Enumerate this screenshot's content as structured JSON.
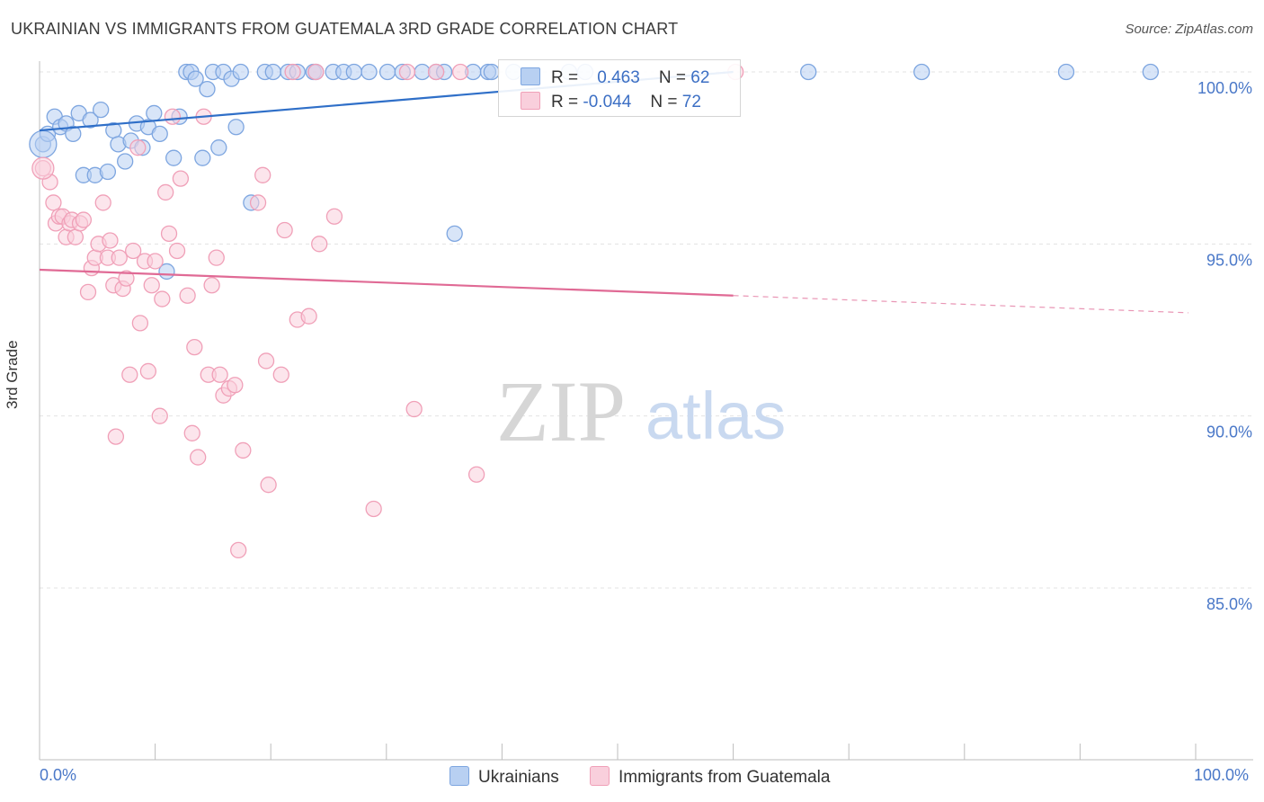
{
  "chart_data": {
    "type": "scatter",
    "title": "UKRAINIAN VS IMMIGRANTS FROM GUATEMALA 3RD GRADE CORRELATION CHART",
    "source": "Source: ZipAtlas.com",
    "xlabel": "",
    "ylabel": "3rd Grade",
    "xlim": [
      0,
      100
    ],
    "ylim": [
      80,
      100
    ],
    "x_tick_labels": [
      "0.0%",
      "100.0%"
    ],
    "y_ticks": [
      {
        "value": 100,
        "label": "100.0%"
      },
      {
        "value": 95,
        "label": "95.0%"
      },
      {
        "value": 90,
        "label": "90.0%"
      },
      {
        "value": 85,
        "label": "85.0%"
      }
    ],
    "watermark": {
      "left": "ZIP",
      "right": "atlas"
    },
    "legend_stats": [
      {
        "r_label": "R =",
        "r_value": "0.463",
        "n_label": "N =",
        "n_value": "62"
      },
      {
        "r_label": "R =",
        "r_value": "-0.044",
        "n_label": "N =",
        "n_value": "72"
      }
    ],
    "series": [
      {
        "name": "Ukrainians",
        "color": "#7ea6e0",
        "fill": "#b8d0f2",
        "line_color": "#2f6fc8",
        "trend": {
          "x0": 0,
          "y0": 98.3,
          "x1": 60,
          "y1": 100.0,
          "dashed_to": 60
        },
        "points": [
          [
            0.3,
            97.9
          ],
          [
            0.7,
            98.2
          ],
          [
            1.3,
            98.7
          ],
          [
            1.8,
            98.4
          ],
          [
            2.3,
            98.5
          ],
          [
            2.9,
            98.2
          ],
          [
            3.4,
            98.8
          ],
          [
            3.8,
            97.0
          ],
          [
            4.4,
            98.6
          ],
          [
            4.8,
            97.0
          ],
          [
            5.3,
            98.9
          ],
          [
            5.9,
            97.1
          ],
          [
            6.4,
            98.3
          ],
          [
            6.8,
            97.9
          ],
          [
            7.4,
            97.4
          ],
          [
            7.9,
            98.0
          ],
          [
            8.4,
            98.5
          ],
          [
            8.9,
            97.8
          ],
          [
            9.4,
            98.4
          ],
          [
            9.9,
            98.8
          ],
          [
            10.4,
            98.2
          ],
          [
            11.0,
            94.2
          ],
          [
            11.6,
            97.5
          ],
          [
            12.1,
            98.7
          ],
          [
            12.7,
            100.0
          ],
          [
            13.1,
            100.0
          ],
          [
            13.5,
            99.8
          ],
          [
            14.1,
            97.5
          ],
          [
            14.5,
            99.5
          ],
          [
            15.0,
            100.0
          ],
          [
            15.5,
            97.8
          ],
          [
            15.9,
            100.0
          ],
          [
            16.6,
            99.8
          ],
          [
            17.0,
            98.4
          ],
          [
            17.4,
            100.0
          ],
          [
            18.3,
            96.2
          ],
          [
            19.5,
            100.0
          ],
          [
            20.2,
            100.0
          ],
          [
            21.5,
            100.0
          ],
          [
            22.3,
            100.0
          ],
          [
            23.7,
            100.0
          ],
          [
            23.9,
            100.0
          ],
          [
            25.4,
            100.0
          ],
          [
            26.3,
            100.0
          ],
          [
            27.2,
            100.0
          ],
          [
            28.5,
            100.0
          ],
          [
            30.1,
            100.0
          ],
          [
            31.4,
            100.0
          ],
          [
            33.1,
            100.0
          ],
          [
            34.3,
            100.0
          ],
          [
            35.0,
            100.0
          ],
          [
            35.9,
            95.3
          ],
          [
            37.5,
            100.0
          ],
          [
            38.8,
            100.0
          ],
          [
            39.1,
            100.0
          ],
          [
            41.0,
            100.0
          ],
          [
            45.8,
            100.0
          ],
          [
            47.2,
            100.0
          ],
          [
            66.5,
            100.0
          ],
          [
            76.3,
            100.0
          ],
          [
            88.8,
            100.0
          ],
          [
            96.1,
            100.0
          ]
        ]
      },
      {
        "name": "Immigrants from Guatemala",
        "color": "#f0a0b8",
        "fill": "#f9cfdc",
        "line_color": "#e06a95",
        "trend": {
          "x0": 0,
          "y0": 94.25,
          "x1": 60,
          "y1": 93.5,
          "dashed_to": 100
        },
        "points": [
          [
            0.3,
            97.2
          ],
          [
            0.9,
            96.8
          ],
          [
            1.2,
            96.2
          ],
          [
            1.4,
            95.6
          ],
          [
            1.7,
            95.8
          ],
          [
            2.0,
            95.8
          ],
          [
            2.3,
            95.2
          ],
          [
            2.6,
            95.6
          ],
          [
            2.8,
            95.7
          ],
          [
            3.1,
            95.2
          ],
          [
            3.5,
            95.6
          ],
          [
            3.8,
            95.7
          ],
          [
            4.2,
            93.6
          ],
          [
            4.5,
            94.3
          ],
          [
            4.8,
            94.6
          ],
          [
            5.1,
            95.0
          ],
          [
            5.5,
            96.2
          ],
          [
            5.9,
            94.6
          ],
          [
            6.1,
            95.1
          ],
          [
            6.4,
            93.8
          ],
          [
            6.6,
            89.4
          ],
          [
            6.9,
            94.6
          ],
          [
            7.2,
            93.7
          ],
          [
            7.5,
            94.0
          ],
          [
            7.8,
            91.2
          ],
          [
            8.1,
            94.8
          ],
          [
            8.5,
            97.8
          ],
          [
            8.7,
            92.7
          ],
          [
            9.1,
            94.5
          ],
          [
            9.4,
            91.3
          ],
          [
            9.7,
            93.8
          ],
          [
            10.0,
            94.5
          ],
          [
            10.4,
            90.0
          ],
          [
            10.6,
            93.4
          ],
          [
            10.9,
            96.5
          ],
          [
            11.2,
            95.3
          ],
          [
            11.5,
            98.7
          ],
          [
            11.9,
            94.8
          ],
          [
            12.2,
            96.9
          ],
          [
            12.8,
            93.5
          ],
          [
            13.2,
            89.5
          ],
          [
            13.4,
            92.0
          ],
          [
            13.7,
            88.8
          ],
          [
            14.2,
            98.7
          ],
          [
            14.6,
            91.2
          ],
          [
            14.9,
            93.8
          ],
          [
            15.3,
            94.6
          ],
          [
            15.6,
            91.2
          ],
          [
            15.9,
            90.6
          ],
          [
            16.4,
            90.8
          ],
          [
            16.9,
            90.9
          ],
          [
            17.2,
            86.1
          ],
          [
            17.6,
            89.0
          ],
          [
            18.9,
            96.2
          ],
          [
            19.3,
            97.0
          ],
          [
            19.6,
            91.6
          ],
          [
            19.8,
            88.0
          ],
          [
            20.9,
            91.2
          ],
          [
            21.2,
            95.4
          ],
          [
            21.9,
            100.0
          ],
          [
            22.3,
            92.8
          ],
          [
            23.3,
            92.9
          ],
          [
            23.9,
            100.0
          ],
          [
            24.2,
            95.0
          ],
          [
            25.5,
            95.8
          ],
          [
            28.9,
            87.3
          ],
          [
            31.8,
            100.0
          ],
          [
            32.4,
            90.2
          ],
          [
            34.3,
            100.0
          ],
          [
            36.4,
            100.0
          ],
          [
            37.8,
            88.3
          ],
          [
            60.2,
            100.0
          ]
        ]
      }
    ]
  }
}
